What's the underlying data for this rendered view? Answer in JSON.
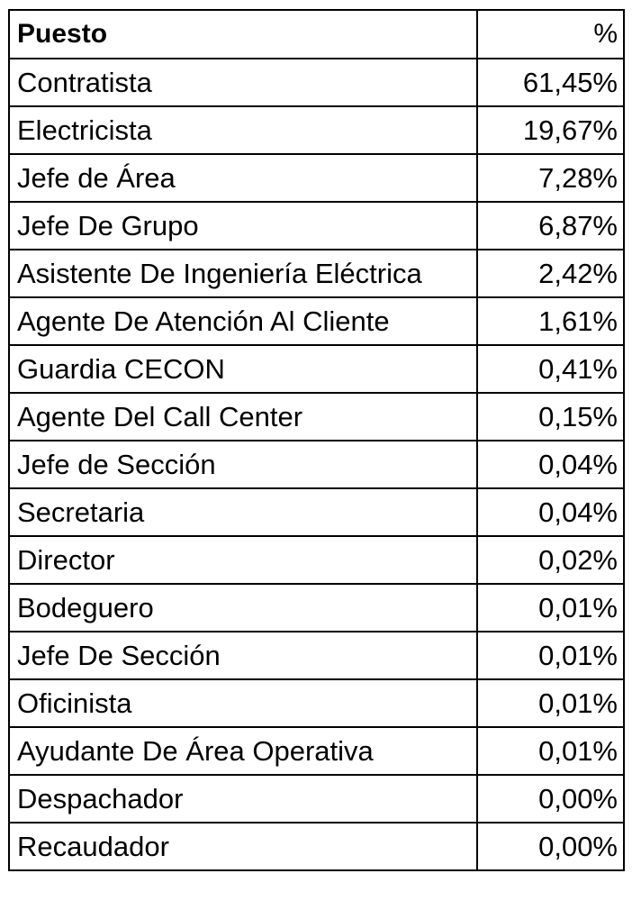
{
  "table": {
    "headers": {
      "puesto": "Puesto",
      "pct": "%"
    },
    "rows": [
      {
        "puesto": "Contratista",
        "pct": "61,45%"
      },
      {
        "puesto": "Electricista",
        "pct": "19,67%"
      },
      {
        "puesto": "Jefe de Área",
        "pct": "7,28%"
      },
      {
        "puesto": "Jefe De Grupo",
        "pct": "6,87%"
      },
      {
        "puesto": "Asistente De Ingeniería Eléctrica",
        "pct": "2,42%"
      },
      {
        "puesto": "Agente De Atención Al Cliente",
        "pct": "1,61%"
      },
      {
        "puesto": "Guardia CECON",
        "pct": "0,41%"
      },
      {
        "puesto": "Agente Del Call Center",
        "pct": "0,15%"
      },
      {
        "puesto": "Jefe de Sección",
        "pct": "0,04%"
      },
      {
        "puesto": "Secretaria",
        "pct": "0,04%"
      },
      {
        "puesto": "Director",
        "pct": "0,02%"
      },
      {
        "puesto": "Bodeguero",
        "pct": "0,01%"
      },
      {
        "puesto": "Jefe De Sección",
        "pct": "0,01%"
      },
      {
        "puesto": "Oficinista",
        "pct": "0,01%"
      },
      {
        "puesto": "Ayudante De Área Operativa",
        "pct": "0,01%"
      },
      {
        "puesto": "Despachador",
        "pct": "0,00%"
      },
      {
        "puesto": "Recaudador",
        "pct": "0,00%"
      }
    ]
  }
}
